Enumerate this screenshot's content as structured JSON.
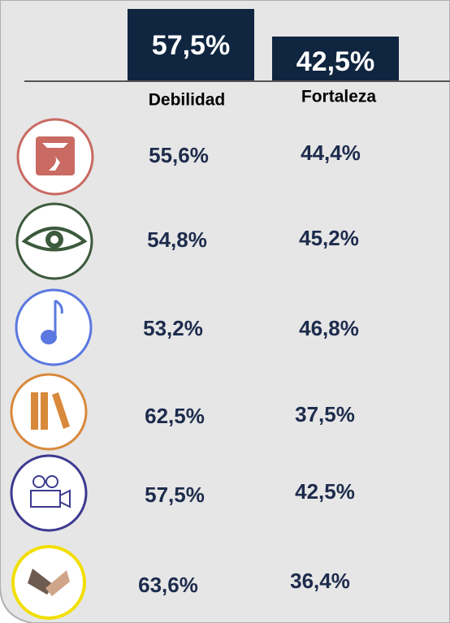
{
  "header": {
    "summary": [
      {
        "value": "57,5%",
        "label": "Debilidad"
      },
      {
        "value": "42,5%",
        "label": "Fortaleza"
      }
    ]
  },
  "rows": [
    {
      "debilidad": "55,6%",
      "fortaleza": "44,4%"
    },
    {
      "debilidad": "54,8%",
      "fortaleza": "45,2%"
    },
    {
      "debilidad": "53,2%",
      "fortaleza": "46,8%"
    },
    {
      "debilidad": "62,5%",
      "fortaleza": "37,5%"
    },
    {
      "debilidad": "57,5%",
      "fortaleza": "42,5%"
    },
    {
      "debilidad": "63,6%",
      "fortaleza": "36,4%"
    }
  ]
}
